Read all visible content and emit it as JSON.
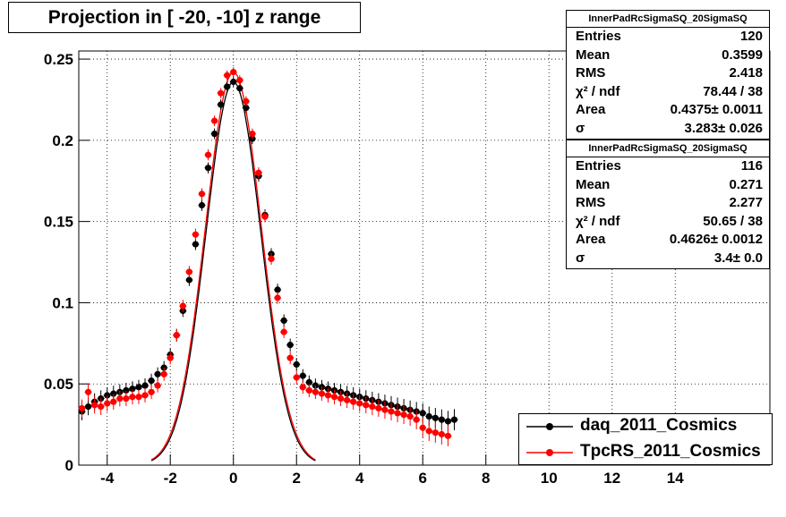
{
  "title": "Projection in [ -20, -10] z range",
  "stats": [
    {
      "name": "InnerPadRcSigmaSQ_20SigmaSQ",
      "rows": [
        {
          "label": "Entries",
          "value": "120"
        },
        {
          "label": "Mean",
          "value": "0.3599"
        },
        {
          "label": "RMS",
          "value": "2.418"
        },
        {
          "label": "χ² / ndf",
          "value": "78.44 / 38"
        },
        {
          "label": "Area",
          "value": "0.4375± 0.0011"
        },
        {
          "label": "σ",
          "value": "3.283± 0.026"
        }
      ]
    },
    {
      "name": "InnerPadRcSigmaSQ_20SigmaSQ",
      "rows": [
        {
          "label": "Entries",
          "value": "116"
        },
        {
          "label": "Mean",
          "value": "0.271"
        },
        {
          "label": "RMS",
          "value": "2.277"
        },
        {
          "label": "χ² / ndf",
          "value": "50.65 / 38"
        },
        {
          "label": "Area",
          "value": "0.4626± 0.0012"
        },
        {
          "label": "σ",
          "value": "3.4± 0.0"
        }
      ]
    }
  ],
  "legend": [
    {
      "label": "daq_2011_Cosmics",
      "color": "#000000"
    },
    {
      "label": "TpcRS_2011_Cosmics",
      "color": "#ff0000"
    }
  ],
  "chart_data": {
    "type": "scatter",
    "title": "Projection in [ -20, -10] z range",
    "xlim": [
      -4.9,
      17
    ],
    "ylim": [
      0,
      0.255
    ],
    "x_ticks": [
      "-4",
      "-2",
      "0",
      "2",
      "4",
      "6",
      "8",
      "10",
      "12",
      "14"
    ],
    "y_ticks": [
      "0",
      "0.05",
      "0.1",
      "0.15",
      "0.2",
      "0.25"
    ],
    "grid": true,
    "legend_position": "bottom-right",
    "series": [
      {
        "name": "daq_2011_Cosmics",
        "color": "#000000",
        "x": [
          -4.8,
          -4.6,
          -4.4,
          -4.2,
          -4.0,
          -3.8,
          -3.6,
          -3.4,
          -3.2,
          -3.0,
          -2.8,
          -2.6,
          -2.4,
          -2.2,
          -2.0,
          -1.8,
          -1.6,
          -1.4,
          -1.2,
          -1.0,
          -0.8,
          -0.6,
          -0.4,
          -0.2,
          0.0,
          0.2,
          0.4,
          0.6,
          0.8,
          1.0,
          1.2,
          1.4,
          1.6,
          1.8,
          2.0,
          2.2,
          2.4,
          2.6,
          2.8,
          3.0,
          3.2,
          3.4,
          3.6,
          3.8,
          4.0,
          4.2,
          4.4,
          4.6,
          4.8,
          5.0,
          5.2,
          5.4,
          5.6,
          5.8,
          6.0,
          6.2,
          6.4,
          6.6,
          6.8,
          7.0
        ],
        "y": [
          0.033,
          0.036,
          0.039,
          0.041,
          0.043,
          0.044,
          0.045,
          0.046,
          0.047,
          0.048,
          0.049,
          0.052,
          0.056,
          0.06,
          0.068,
          0.08,
          0.095,
          0.114,
          0.136,
          0.16,
          0.183,
          0.204,
          0.222,
          0.233,
          0.236,
          0.232,
          0.22,
          0.201,
          0.178,
          0.154,
          0.13,
          0.108,
          0.089,
          0.074,
          0.062,
          0.055,
          0.051,
          0.049,
          0.048,
          0.047,
          0.046,
          0.045,
          0.044,
          0.043,
          0.042,
          0.041,
          0.04,
          0.039,
          0.038,
          0.037,
          0.036,
          0.035,
          0.034,
          0.033,
          0.032,
          0.03,
          0.029,
          0.028,
          0.027,
          0.028
        ]
      },
      {
        "name": "TpcRS_2011_Cosmics",
        "color": "#ff0000",
        "x": [
          -4.8,
          -4.6,
          -4.4,
          -4.2,
          -4.0,
          -3.8,
          -3.6,
          -3.4,
          -3.2,
          -3.0,
          -2.8,
          -2.6,
          -2.4,
          -2.2,
          -2.0,
          -1.8,
          -1.6,
          -1.4,
          -1.2,
          -1.0,
          -0.8,
          -0.6,
          -0.4,
          -0.2,
          0.0,
          0.2,
          0.4,
          0.6,
          0.8,
          1.0,
          1.2,
          1.4,
          1.6,
          1.8,
          2.0,
          2.2,
          2.4,
          2.6,
          2.8,
          3.0,
          3.2,
          3.4,
          3.6,
          3.8,
          4.0,
          4.2,
          4.4,
          4.6,
          4.8,
          5.0,
          5.2,
          5.4,
          5.6,
          5.8,
          6.0,
          6.2,
          6.4,
          6.6,
          6.8
        ],
        "y": [
          0.035,
          0.045,
          0.037,
          0.036,
          0.038,
          0.039,
          0.041,
          0.041,
          0.042,
          0.042,
          0.043,
          0.045,
          0.049,
          0.056,
          0.066,
          0.08,
          0.098,
          0.119,
          0.142,
          0.167,
          0.191,
          0.212,
          0.229,
          0.24,
          0.242,
          0.237,
          0.224,
          0.204,
          0.18,
          0.153,
          0.127,
          0.103,
          0.082,
          0.066,
          0.054,
          0.048,
          0.046,
          0.045,
          0.044,
          0.043,
          0.042,
          0.041,
          0.04,
          0.039,
          0.038,
          0.037,
          0.036,
          0.035,
          0.034,
          0.033,
          0.032,
          0.031,
          0.03,
          0.028,
          0.023,
          0.021,
          0.02,
          0.019,
          0.018
        ]
      }
    ],
    "fits": [
      {
        "series": "daq_2011_Cosmics",
        "sigma": 3.283,
        "peak": 0.236
      },
      {
        "series": "TpcRS_2011_Cosmics",
        "sigma": 3.4,
        "peak": 0.242
      }
    ]
  }
}
